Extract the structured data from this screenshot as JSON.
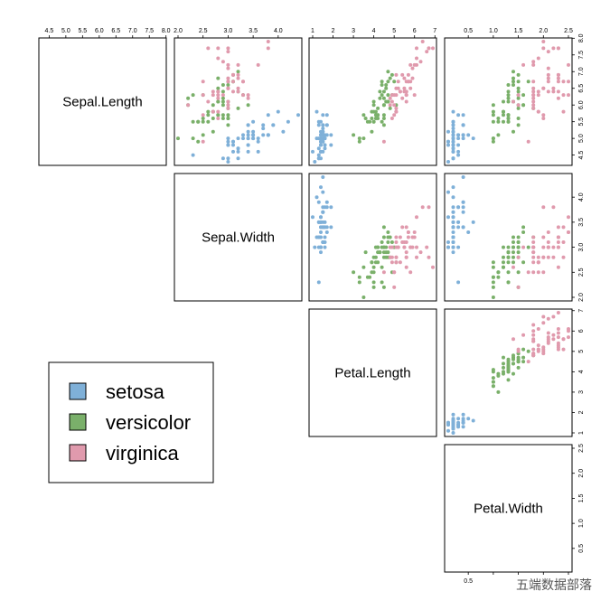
{
  "chart_data": {
    "type": "scatter",
    "title": "",
    "variables": [
      "Sepal.Length",
      "Sepal.Width",
      "Petal.Length",
      "Petal.Width"
    ],
    "ranges": {
      "Sepal.Length": [
        4.3,
        7.9
      ],
      "Sepal.Width": [
        2.0,
        4.4
      ],
      "Petal.Length": [
        1.0,
        6.9
      ],
      "Petal.Width": [
        0.1,
        2.5
      ]
    },
    "ticks": {
      "Sepal.Length": [
        "4.5",
        "5.0",
        "5.5",
        "6.0",
        "6.5",
        "7.0",
        "7.5",
        "8.0"
      ],
      "Sepal.Width": [
        "2.0",
        "2.5",
        "3.0",
        "3.5",
        "4.0"
      ],
      "Petal.Length": [
        "1",
        "2",
        "3",
        "4",
        "5",
        "6",
        "7"
      ],
      "Petal.Width": [
        "0.5",
        "1.0",
        "1.5",
        "2.0",
        "2.5"
      ]
    },
    "grid": false,
    "legend_position": "bottom-left",
    "series": [
      {
        "name": "setosa",
        "color": "#7fb0d8",
        "values": [
          [
            5.1,
            3.5,
            1.4,
            0.2
          ],
          [
            4.9,
            3.0,
            1.4,
            0.2
          ],
          [
            4.7,
            3.2,
            1.3,
            0.2
          ],
          [
            4.6,
            3.1,
            1.5,
            0.2
          ],
          [
            5.0,
            3.6,
            1.4,
            0.2
          ],
          [
            5.4,
            3.9,
            1.7,
            0.4
          ],
          [
            4.6,
            3.4,
            1.4,
            0.3
          ],
          [
            5.0,
            3.4,
            1.5,
            0.2
          ],
          [
            4.4,
            2.9,
            1.4,
            0.2
          ],
          [
            4.9,
            3.1,
            1.5,
            0.1
          ],
          [
            5.4,
            3.7,
            1.5,
            0.2
          ],
          [
            4.8,
            3.4,
            1.6,
            0.2
          ],
          [
            4.8,
            3.0,
            1.4,
            0.1
          ],
          [
            4.3,
            3.0,
            1.1,
            0.1
          ],
          [
            5.8,
            4.0,
            1.2,
            0.2
          ],
          [
            5.7,
            4.4,
            1.5,
            0.4
          ],
          [
            5.4,
            3.9,
            1.3,
            0.4
          ],
          [
            5.1,
            3.5,
            1.4,
            0.3
          ],
          [
            5.7,
            3.8,
            1.7,
            0.3
          ],
          [
            5.1,
            3.8,
            1.5,
            0.3
          ],
          [
            5.4,
            3.4,
            1.7,
            0.2
          ],
          [
            5.1,
            3.7,
            1.5,
            0.4
          ],
          [
            4.6,
            3.6,
            1.0,
            0.2
          ],
          [
            5.1,
            3.3,
            1.7,
            0.5
          ],
          [
            4.8,
            3.4,
            1.9,
            0.2
          ],
          [
            5.0,
            3.0,
            1.6,
            0.2
          ],
          [
            5.0,
            3.4,
            1.6,
            0.4
          ],
          [
            5.2,
            3.5,
            1.5,
            0.2
          ],
          [
            5.2,
            3.4,
            1.4,
            0.2
          ],
          [
            4.7,
            3.2,
            1.6,
            0.2
          ],
          [
            4.8,
            3.1,
            1.6,
            0.2
          ],
          [
            5.4,
            3.4,
            1.5,
            0.4
          ],
          [
            5.2,
            4.1,
            1.5,
            0.1
          ],
          [
            5.5,
            4.2,
            1.4,
            0.2
          ],
          [
            4.9,
            3.1,
            1.5,
            0.2
          ],
          [
            5.0,
            3.2,
            1.2,
            0.2
          ],
          [
            5.5,
            3.5,
            1.3,
            0.2
          ],
          [
            4.9,
            3.6,
            1.4,
            0.1
          ],
          [
            4.4,
            3.0,
            1.3,
            0.2
          ],
          [
            5.1,
            3.4,
            1.5,
            0.2
          ],
          [
            5.0,
            3.5,
            1.3,
            0.3
          ],
          [
            4.5,
            2.3,
            1.3,
            0.3
          ],
          [
            4.4,
            3.2,
            1.3,
            0.2
          ],
          [
            5.0,
            3.5,
            1.6,
            0.6
          ],
          [
            5.1,
            3.8,
            1.9,
            0.4
          ],
          [
            4.8,
            3.0,
            1.4,
            0.3
          ],
          [
            5.1,
            3.8,
            1.6,
            0.2
          ],
          [
            4.6,
            3.2,
            1.4,
            0.2
          ],
          [
            5.3,
            3.7,
            1.5,
            0.2
          ],
          [
            5.0,
            3.3,
            1.4,
            0.2
          ]
        ]
      },
      {
        "name": "versicolor",
        "color": "#7ab06a",
        "values": [
          [
            7.0,
            3.2,
            4.7,
            1.4
          ],
          [
            6.4,
            3.2,
            4.5,
            1.5
          ],
          [
            6.9,
            3.1,
            4.9,
            1.5
          ],
          [
            5.5,
            2.3,
            4.0,
            1.3
          ],
          [
            6.5,
            2.8,
            4.6,
            1.5
          ],
          [
            5.7,
            2.8,
            4.5,
            1.3
          ],
          [
            6.3,
            3.3,
            4.7,
            1.6
          ],
          [
            4.9,
            2.4,
            3.3,
            1.0
          ],
          [
            6.6,
            2.9,
            4.6,
            1.3
          ],
          [
            5.2,
            2.7,
            3.9,
            1.4
          ],
          [
            5.0,
            2.0,
            3.5,
            1.0
          ],
          [
            5.9,
            3.0,
            4.2,
            1.5
          ],
          [
            6.0,
            2.2,
            4.0,
            1.0
          ],
          [
            6.1,
            2.9,
            4.7,
            1.4
          ],
          [
            5.6,
            2.9,
            3.6,
            1.3
          ],
          [
            6.7,
            3.1,
            4.4,
            1.4
          ],
          [
            5.6,
            3.0,
            4.5,
            1.5
          ],
          [
            5.8,
            2.7,
            4.1,
            1.0
          ],
          [
            6.2,
            2.2,
            4.5,
            1.5
          ],
          [
            5.6,
            2.5,
            3.9,
            1.1
          ],
          [
            5.9,
            3.2,
            4.8,
            1.8
          ],
          [
            6.1,
            2.8,
            4.0,
            1.3
          ],
          [
            6.3,
            2.5,
            4.9,
            1.5
          ],
          [
            6.1,
            2.8,
            4.7,
            1.2
          ],
          [
            6.4,
            2.9,
            4.3,
            1.3
          ],
          [
            6.6,
            3.0,
            4.4,
            1.4
          ],
          [
            6.8,
            2.8,
            4.8,
            1.4
          ],
          [
            6.7,
            3.0,
            5.0,
            1.7
          ],
          [
            6.0,
            2.9,
            4.5,
            1.5
          ],
          [
            5.7,
            2.6,
            3.5,
            1.0
          ],
          [
            5.5,
            2.4,
            3.8,
            1.1
          ],
          [
            5.5,
            2.4,
            3.7,
            1.0
          ],
          [
            5.8,
            2.7,
            3.9,
            1.2
          ],
          [
            6.0,
            2.7,
            5.1,
            1.6
          ],
          [
            5.4,
            3.0,
            4.5,
            1.5
          ],
          [
            6.0,
            3.4,
            4.5,
            1.6
          ],
          [
            6.7,
            3.1,
            4.7,
            1.5
          ],
          [
            6.3,
            2.3,
            4.4,
            1.3
          ],
          [
            5.6,
            3.0,
            4.1,
            1.3
          ],
          [
            5.5,
            2.5,
            4.0,
            1.3
          ],
          [
            5.5,
            2.6,
            4.4,
            1.2
          ],
          [
            6.1,
            3.0,
            4.6,
            1.4
          ],
          [
            5.8,
            2.6,
            4.0,
            1.2
          ],
          [
            5.0,
            2.3,
            3.3,
            1.0
          ],
          [
            5.6,
            2.7,
            4.2,
            1.3
          ],
          [
            5.7,
            3.0,
            4.2,
            1.2
          ],
          [
            5.7,
            2.9,
            4.2,
            1.3
          ],
          [
            6.2,
            2.9,
            4.3,
            1.3
          ],
          [
            5.1,
            2.5,
            3.0,
            1.1
          ],
          [
            5.7,
            2.8,
            4.1,
            1.3
          ]
        ]
      },
      {
        "name": "virginica",
        "color": "#e09aad",
        "values": [
          [
            6.3,
            3.3,
            6.0,
            2.5
          ],
          [
            5.8,
            2.7,
            5.1,
            1.9
          ],
          [
            7.1,
            3.0,
            5.9,
            2.1
          ],
          [
            6.3,
            2.9,
            5.6,
            1.8
          ],
          [
            6.5,
            3.0,
            5.8,
            2.2
          ],
          [
            7.6,
            3.0,
            6.6,
            2.1
          ],
          [
            4.9,
            2.5,
            4.5,
            1.7
          ],
          [
            7.3,
            2.9,
            6.3,
            1.8
          ],
          [
            6.7,
            2.5,
            5.8,
            1.8
          ],
          [
            7.2,
            3.6,
            6.1,
            2.5
          ],
          [
            6.5,
            3.2,
            5.1,
            2.0
          ],
          [
            6.4,
            2.7,
            5.3,
            1.9
          ],
          [
            6.8,
            3.0,
            5.5,
            2.1
          ],
          [
            5.7,
            2.5,
            5.0,
            2.0
          ],
          [
            5.8,
            2.8,
            5.1,
            2.4
          ],
          [
            6.4,
            3.2,
            5.3,
            2.3
          ],
          [
            6.5,
            3.0,
            5.5,
            1.8
          ],
          [
            7.7,
            3.8,
            6.7,
            2.2
          ],
          [
            7.7,
            2.6,
            6.9,
            2.3
          ],
          [
            6.0,
            2.2,
            5.0,
            1.5
          ],
          [
            6.9,
            3.2,
            5.7,
            2.3
          ],
          [
            5.6,
            2.8,
            4.9,
            2.0
          ],
          [
            7.7,
            2.8,
            6.7,
            2.0
          ],
          [
            6.3,
            2.7,
            4.9,
            1.8
          ],
          [
            6.7,
            3.3,
            5.7,
            2.1
          ],
          [
            7.2,
            3.2,
            6.0,
            1.8
          ],
          [
            6.2,
            2.8,
            4.8,
            1.8
          ],
          [
            6.1,
            3.0,
            4.9,
            1.8
          ],
          [
            6.4,
            2.8,
            5.6,
            2.1
          ],
          [
            7.2,
            3.0,
            5.8,
            1.6
          ],
          [
            7.4,
            2.8,
            6.1,
            1.9
          ],
          [
            7.9,
            3.8,
            6.4,
            2.0
          ],
          [
            6.4,
            2.8,
            5.6,
            2.2
          ],
          [
            6.3,
            2.8,
            5.1,
            1.5
          ],
          [
            6.1,
            2.6,
            5.6,
            1.4
          ],
          [
            7.7,
            3.0,
            6.1,
            2.3
          ],
          [
            6.3,
            3.4,
            5.6,
            2.4
          ],
          [
            6.4,
            3.1,
            5.5,
            1.8
          ],
          [
            6.0,
            3.0,
            4.8,
            1.8
          ],
          [
            6.9,
            3.1,
            5.4,
            2.1
          ],
          [
            6.7,
            3.1,
            5.6,
            2.4
          ],
          [
            6.9,
            3.1,
            5.1,
            2.3
          ],
          [
            5.8,
            2.7,
            5.1,
            1.9
          ],
          [
            6.8,
            3.2,
            5.9,
            2.3
          ],
          [
            6.7,
            3.3,
            5.7,
            2.5
          ],
          [
            6.7,
            3.0,
            5.2,
            2.3
          ],
          [
            6.3,
            2.5,
            5.0,
            1.9
          ],
          [
            6.5,
            3.0,
            5.2,
            2.0
          ],
          [
            6.2,
            3.4,
            5.4,
            2.3
          ],
          [
            5.9,
            3.0,
            5.1,
            1.8
          ]
        ]
      }
    ]
  },
  "watermark": "五端数据部落"
}
